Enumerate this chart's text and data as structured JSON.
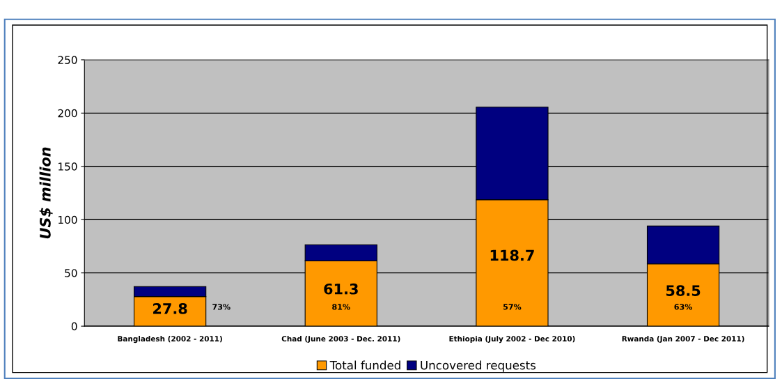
{
  "chart_data": {
    "type": "bar",
    "stacked": true,
    "ylabel": "US$ million",
    "categories": [
      "Bangladesh (2002 - 2011)",
      "Chad (June 2003 - Dec. 2011)",
      "Ethiopia (July 2002 - Dec 2010)",
      "Rwanda (Jan 2007 - Dec 2011)"
    ],
    "series": [
      {
        "name": "Total funded",
        "color": "#ff9900",
        "values": [
          27.8,
          61.3,
          118.7,
          58.5
        ],
        "value_labels": [
          "27.8",
          "61.3",
          "118.7",
          "58.5"
        ]
      },
      {
        "name": "Uncovered requests",
        "color": "#000080",
        "values": [
          9.4,
          15.1,
          86.9,
          35.5
        ]
      }
    ],
    "annotations": [
      "73%",
      "81%",
      "57%",
      "63%"
    ],
    "ylim": [
      0,
      250
    ],
    "yticks": [
      0,
      50,
      100,
      150,
      200,
      250
    ],
    "grid": "y",
    "legend": "bottom"
  }
}
